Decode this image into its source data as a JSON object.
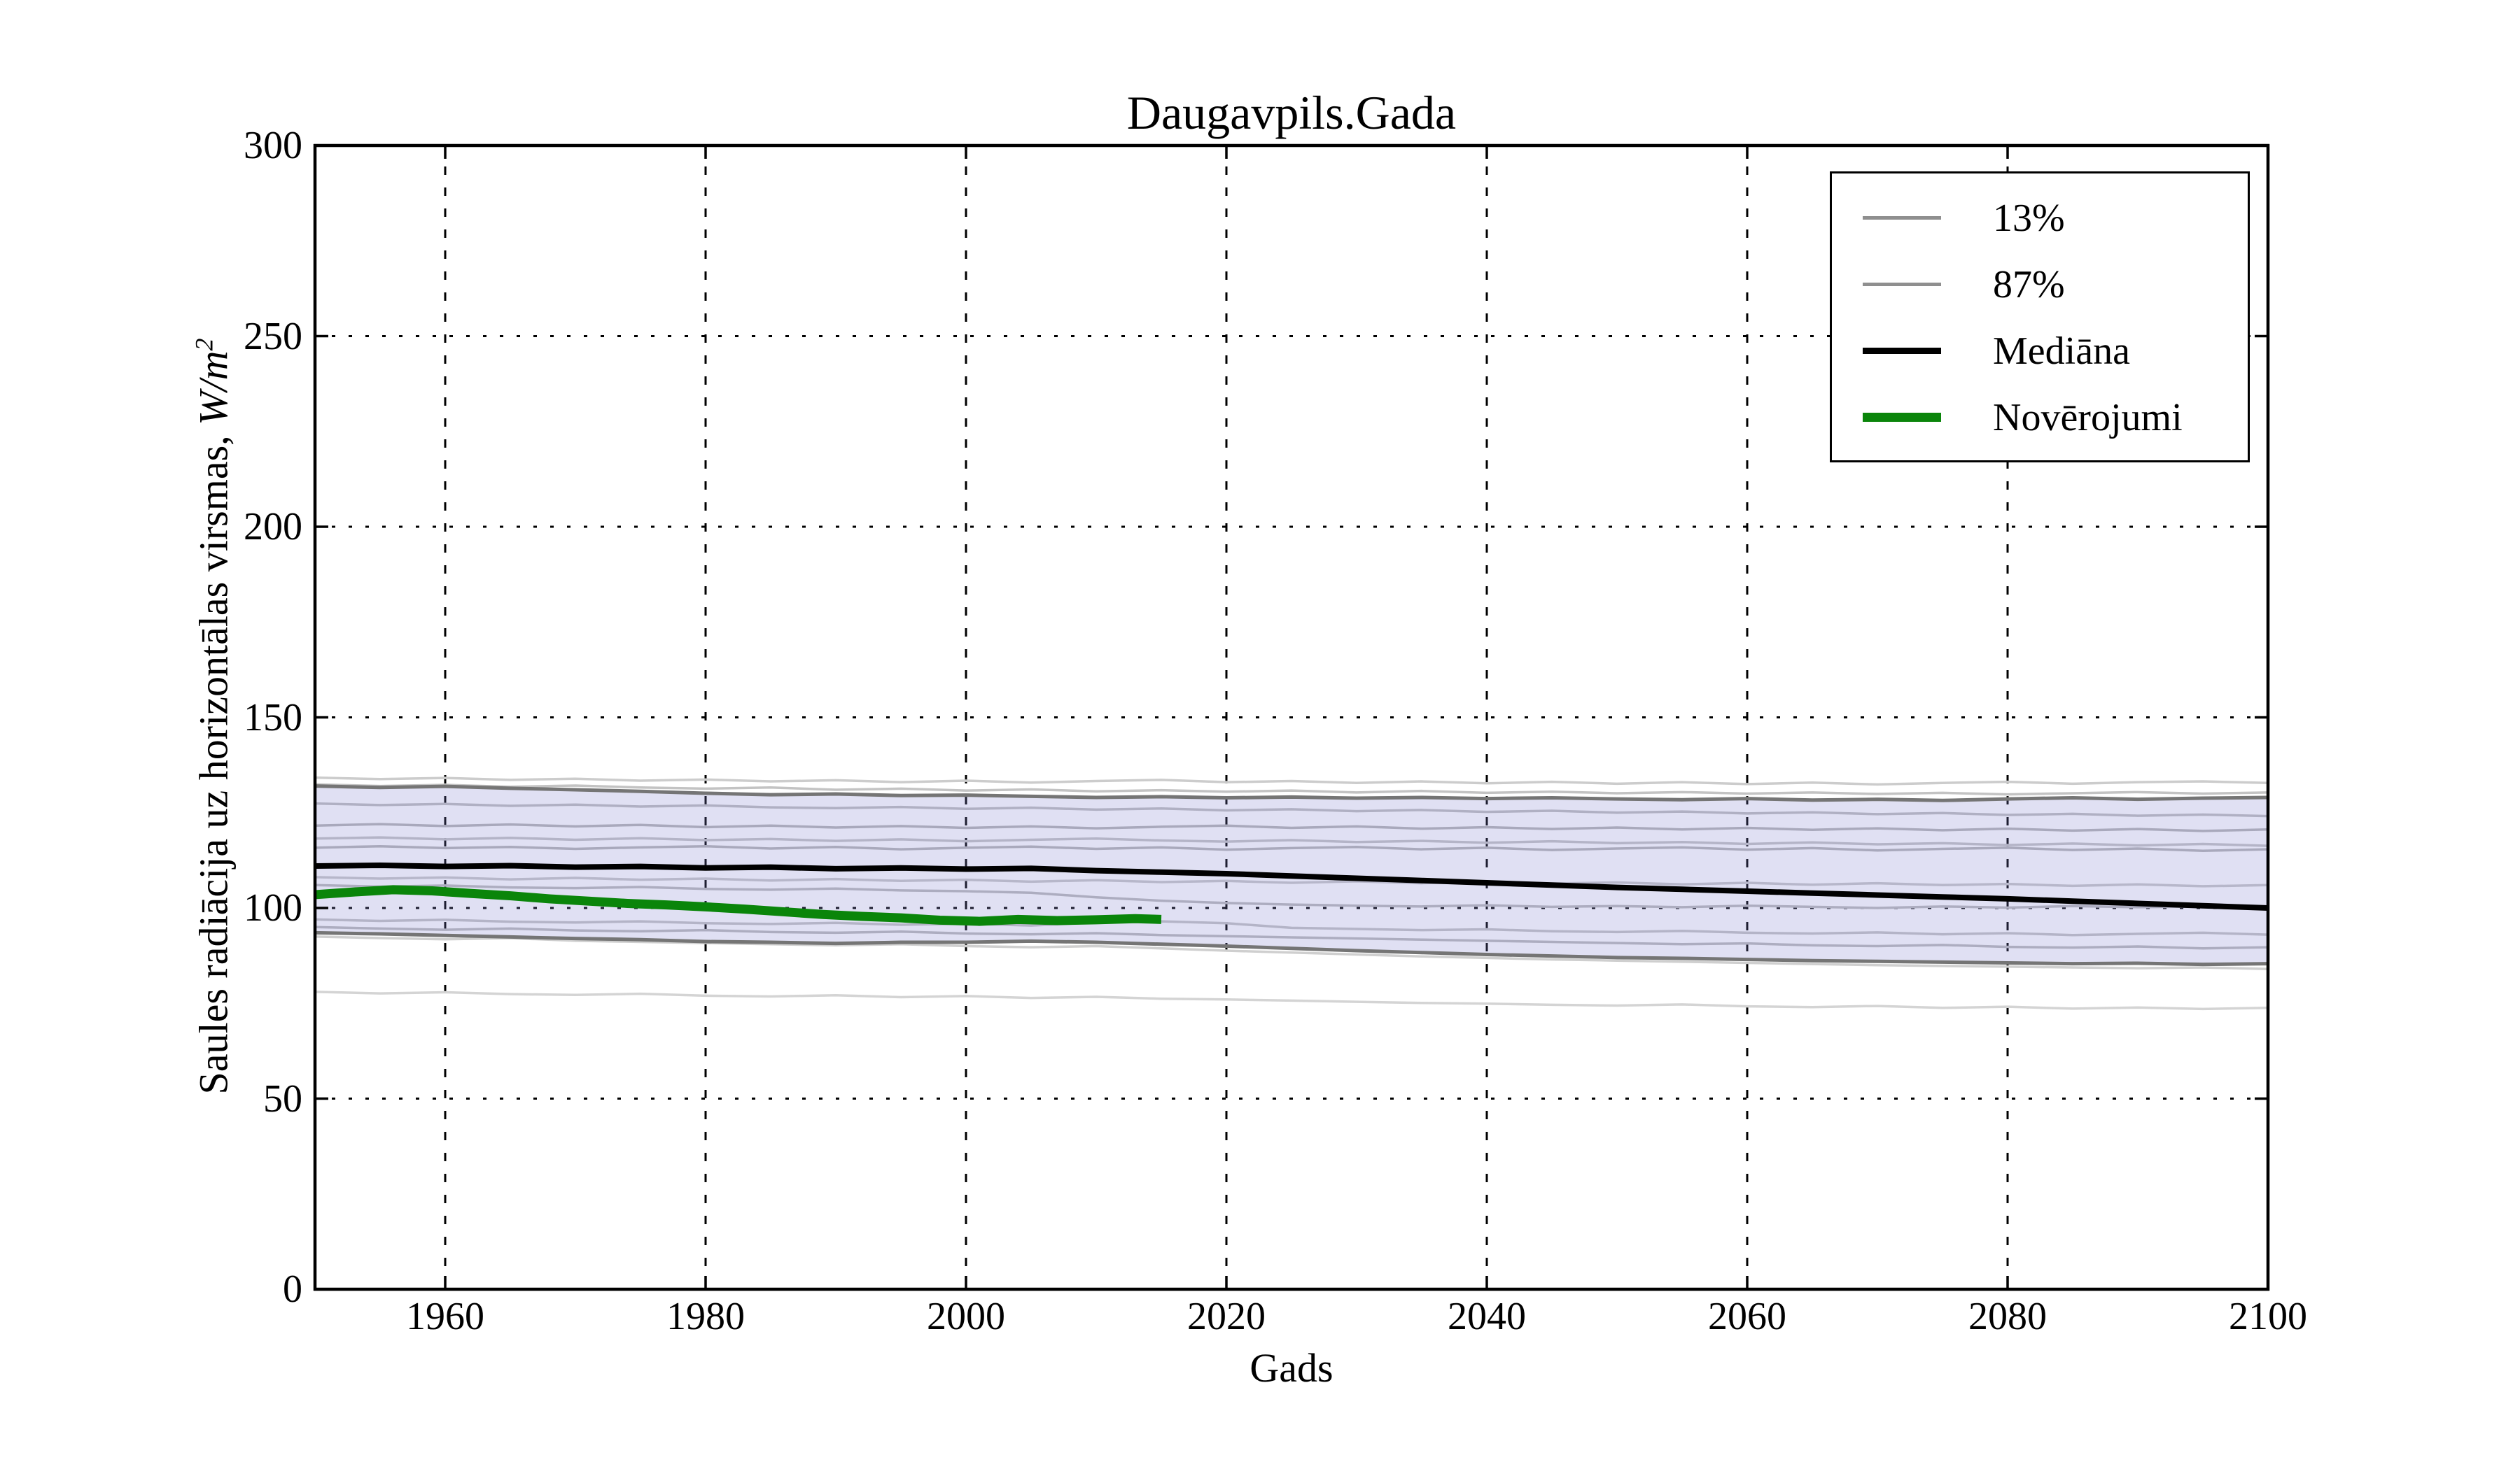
{
  "title": "Daugavpils.Gada",
  "axes": {
    "xlabel": "Gads",
    "ylabel_text": "Saules radiācija uz horizontālas virsmas, ",
    "ylabel_unit": "W/m",
    "ylabel_exponent": "2",
    "xlim": [
      1950,
      2100
    ],
    "ylim": [
      0,
      300
    ],
    "x_ticks": [
      1960,
      1980,
      2000,
      2020,
      2040,
      2060,
      2080,
      2100
    ],
    "y_ticks": [
      0,
      50,
      100,
      150,
      200,
      250,
      300
    ],
    "grid": true
  },
  "legend": {
    "entries": [
      {
        "label": "13%",
        "color": "#8f8f8f",
        "thickness": 5
      },
      {
        "label": "87%",
        "color": "#8f8f8f",
        "thickness": 5
      },
      {
        "label": "Mediāna",
        "color": "#000000",
        "thickness": 9
      },
      {
        "label": "Novērojumi",
        "color": "#0a850a",
        "thickness": 13
      }
    ]
  },
  "colors": {
    "background": "#ffffff",
    "axes_edge": "#000000",
    "grid": "#000000",
    "band_fill": "rgba(125,125,205,0.24)"
  },
  "chart_data": {
    "type": "line",
    "title": "Daugavpils.Gada",
    "xlabel": "Gads",
    "ylabel": "Saules radiacija uz horizontalas virsmas, W/m2",
    "xlim": [
      1950,
      2100
    ],
    "ylim": [
      0,
      300
    ],
    "years": [
      1950,
      1955,
      1960,
      1965,
      1970,
      1975,
      1980,
      1985,
      1990,
      1995,
      2000,
      2005,
      2010,
      2015,
      2020,
      2025,
      2030,
      2035,
      2040,
      2045,
      2050,
      2055,
      2060,
      2065,
      2070,
      2075,
      2080,
      2085,
      2090,
      2095,
      2100
    ],
    "band": {
      "lower": "13%",
      "upper": "87%",
      "fill": "rgba(125,125,205,0.24)"
    },
    "members": [
      {
        "name": "ansamblis-1",
        "color": "#cccccc",
        "width": 3.5,
        "values": [
          134.2,
          133.8,
          134.1,
          133.6,
          133.9,
          133.4,
          133.7,
          133.2,
          133.5,
          133.0,
          133.4,
          132.9,
          133.3,
          133.6,
          133.0,
          133.3,
          132.8,
          133.2,
          132.7,
          133.1,
          132.6,
          133.0,
          132.5,
          132.9,
          132.4,
          132.8,
          133.1,
          132.6,
          133.0,
          133.2,
          132.8
        ]
      },
      {
        "name": "ansamblis-2",
        "color": "#c3c3c3",
        "width": 3.5,
        "values": [
          132.4,
          132.0,
          132.3,
          131.8,
          132.1,
          131.6,
          131.3,
          131.6,
          131.0,
          131.3,
          130.8,
          131.1,
          130.6,
          130.9,
          130.5,
          130.8,
          130.3,
          130.7,
          130.2,
          130.5,
          130.1,
          130.4,
          130.0,
          130.3,
          129.9,
          130.2,
          129.8,
          130.1,
          130.4,
          130.0,
          130.3
        ]
      },
      {
        "name": "ansamblis-3",
        "color": "#c0c0c0",
        "width": 3.5,
        "values": [
          127.4,
          127.0,
          127.3,
          126.8,
          127.1,
          126.6,
          126.9,
          126.4,
          126.2,
          126.5,
          126.0,
          126.3,
          125.8,
          126.1,
          125.6,
          125.9,
          125.4,
          125.7,
          125.2,
          125.5,
          125.0,
          125.3,
          124.8,
          125.1,
          124.6,
          124.9,
          124.4,
          124.7,
          124.2,
          124.5,
          124.1
        ]
      },
      {
        "name": "ansamblis-4",
        "color": "#b7b7b7",
        "width": 3.5,
        "values": [
          121.6,
          122.0,
          121.5,
          121.9,
          121.4,
          121.8,
          121.2,
          121.6,
          121.1,
          121.5,
          121.0,
          121.4,
          120.9,
          121.3,
          121.6,
          121.0,
          121.4,
          120.8,
          121.2,
          120.7,
          121.1,
          120.6,
          121.0,
          120.5,
          120.9,
          120.4,
          120.8,
          120.3,
          120.7,
          120.2,
          120.6
        ]
      },
      {
        "name": "ansamblis-5",
        "color": "#c6c6c6",
        "width": 3.5,
        "values": [
          118.2,
          118.5,
          118.0,
          118.4,
          117.9,
          118.3,
          117.8,
          118.1,
          117.6,
          118.0,
          117.5,
          117.9,
          118.2,
          117.7,
          117.4,
          117.8,
          117.3,
          117.6,
          117.1,
          117.5,
          117.0,
          117.3,
          116.8,
          117.2,
          116.7,
          117.0,
          116.5,
          116.9,
          116.4,
          116.8,
          116.3
        ]
      },
      {
        "name": "ansamblis-6",
        "color": "#b7b7b7",
        "width": 3.5,
        "values": [
          115.8,
          116.2,
          115.7,
          116.0,
          115.5,
          115.9,
          116.2,
          115.6,
          116.0,
          115.4,
          115.8,
          116.1,
          115.5,
          115.9,
          115.3,
          115.7,
          116.0,
          115.4,
          115.8,
          115.2,
          115.6,
          115.9,
          115.3,
          115.7,
          115.1,
          115.5,
          115.8,
          115.2,
          115.6,
          115.0,
          115.4
        ]
      },
      {
        "name": "ansamblis-7",
        "color": "#c9c9c9",
        "width": 3.5,
        "values": [
          108.1,
          107.7,
          108.0,
          107.5,
          107.9,
          107.4,
          107.7,
          107.2,
          107.6,
          107.1,
          107.4,
          106.9,
          107.3,
          106.8,
          107.1,
          106.6,
          107.0,
          106.5,
          106.9,
          106.4,
          106.7,
          106.2,
          106.6,
          106.1,
          106.5,
          106.0,
          106.3,
          105.8,
          106.2,
          105.7,
          106.0
        ]
      },
      {
        "name": "ansamblis-8",
        "color": "#bdbdbd",
        "width": 3.5,
        "values": [
          106.0,
          105.6,
          105.9,
          105.4,
          105.2,
          105.5,
          105.0,
          104.8,
          105.1,
          104.6,
          104.4,
          104.0,
          102.8,
          101.9,
          101.3,
          100.9,
          100.6,
          100.4,
          100.7,
          100.3,
          100.5,
          100.2,
          100.6,
          100.3,
          100.0,
          100.4,
          100.1,
          100.5,
          100.2,
          100.4,
          100.3
        ]
      },
      {
        "name": "ansamblis-9",
        "color": "#c6c6c6",
        "width": 3.5,
        "values": [
          97.0,
          96.6,
          96.9,
          96.4,
          96.2,
          96.5,
          96.0,
          95.8,
          96.1,
          95.6,
          95.9,
          95.4,
          96.2,
          96.5,
          96.0,
          94.8,
          94.5,
          94.2,
          94.4,
          93.9,
          93.7,
          94.0,
          93.5,
          93.3,
          93.6,
          93.1,
          93.4,
          92.9,
          93.2,
          93.5,
          93.0
        ]
      },
      {
        "name": "ansamblis-10",
        "color": "#bcbcbc",
        "width": 3.5,
        "values": [
          95.0,
          94.6,
          94.3,
          94.6,
          94.1,
          93.9,
          94.2,
          93.7,
          93.5,
          93.8,
          93.3,
          93.1,
          93.4,
          92.9,
          92.6,
          92.3,
          92.0,
          91.7,
          91.4,
          91.1,
          90.8,
          90.5,
          90.7,
          90.2,
          90.0,
          90.3,
          89.8,
          89.6,
          89.9,
          89.4,
          89.7
        ]
      },
      {
        "name": "ansamblis-11",
        "color": "#cfcfcf",
        "width": 3.5,
        "values": [
          92.5,
          92.1,
          91.8,
          92.1,
          91.4,
          91.1,
          90.8,
          90.5,
          90.2,
          90.5,
          90.0,
          89.7,
          90.0,
          89.4,
          88.8,
          88.3,
          87.8,
          87.3,
          86.9,
          86.5,
          86.2,
          85.9,
          85.6,
          85.3,
          85.0,
          84.8,
          84.6,
          84.4,
          84.2,
          84.4,
          84.0
        ]
      },
      {
        "name": "ansamblis-12",
        "color": "#d4d4d4",
        "width": 3.5,
        "values": [
          78.0,
          77.6,
          77.9,
          77.4,
          77.2,
          77.5,
          77.0,
          76.8,
          77.1,
          76.6,
          76.9,
          76.4,
          76.7,
          76.2,
          76.0,
          75.7,
          75.4,
          75.1,
          74.9,
          74.6,
          74.4,
          74.7,
          74.2,
          74.0,
          74.3,
          73.8,
          74.1,
          73.6,
          73.9,
          73.5,
          73.8
        ]
      }
    ],
    "series": [
      {
        "name": "13%",
        "color": "#757575",
        "width": 5,
        "values": [
          93.5,
          93.2,
          92.8,
          92.4,
          92.0,
          91.7,
          91.2,
          91.0,
          90.7,
          91.0,
          91.0,
          91.3,
          91.0,
          90.5,
          90.0,
          89.4,
          88.8,
          88.3,
          87.8,
          87.4,
          87.0,
          86.8,
          86.5,
          86.2,
          86.0,
          85.8,
          85.6,
          85.4,
          85.5,
          85.2,
          85.4
        ]
      },
      {
        "name": "87%",
        "color": "#757575",
        "width": 5,
        "values": [
          132.0,
          131.6,
          131.9,
          131.4,
          131.0,
          130.6,
          130.1,
          129.7,
          129.9,
          129.5,
          129.6,
          129.3,
          129.0,
          129.2,
          128.9,
          129.1,
          128.8,
          129.0,
          128.7,
          128.9,
          128.6,
          128.4,
          128.7,
          128.3,
          128.5,
          128.2,
          128.6,
          128.9,
          128.5,
          128.8,
          129.0
        ]
      },
      {
        "name": "Mediana",
        "color": "#000000",
        "width": 8,
        "values": [
          111.0,
          111.2,
          110.9,
          111.1,
          110.7,
          110.9,
          110.5,
          110.7,
          110.3,
          110.5,
          110.2,
          110.4,
          109.8,
          109.4,
          109.0,
          108.4,
          107.8,
          107.2,
          106.6,
          106.0,
          105.4,
          104.9,
          104.4,
          103.9,
          103.4,
          102.9,
          102.4,
          101.8,
          101.2,
          100.6,
          100.0
        ]
      }
    ],
    "observations": {
      "name": "Noverojumi",
      "color": "#0a850a",
      "width": 13,
      "years": [
        1950,
        1953,
        1956,
        1959,
        1962,
        1965,
        1968,
        1971,
        1974,
        1977,
        1980,
        1983,
        1986,
        1989,
        1992,
        1995,
        1998,
        2001,
        2004,
        2007,
        2010,
        2013,
        2015
      ],
      "values": [
        103.5,
        104.2,
        104.8,
        104.5,
        103.8,
        103.2,
        102.4,
        101.8,
        101.2,
        100.8,
        100.3,
        99.7,
        99.0,
        98.3,
        97.8,
        97.4,
        96.8,
        96.5,
        97.0,
        96.7,
        96.9,
        97.2,
        97.0
      ]
    }
  }
}
